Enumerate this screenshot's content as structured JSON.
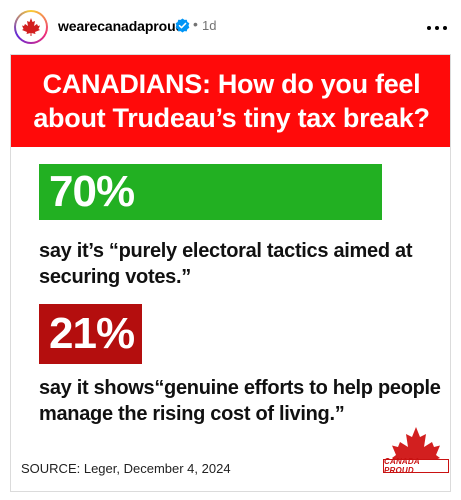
{
  "post": {
    "username": "wearecanadaproud",
    "separator": "•",
    "time": "1d",
    "avatar_icon": "canada-proud-logo",
    "verified_icon": "verified-badge-icon",
    "more_icon": "more-horizontal-icon"
  },
  "graphic": {
    "headline": "CANADIANS: How do you feel about Trudeau’s tiny tax break?",
    "stat1": {
      "value": "70%",
      "description": "say it’s “purely electoral tactics aimed at securing votes.”",
      "color": "#22b022"
    },
    "stat2": {
      "value": "21%",
      "description": "say it shows“genuine efforts to help people manage the rising cost of living.”",
      "color": "#b40e0e"
    },
    "source": "SOURCE: Leger, December 4, 2024",
    "brand_logo": "CANADA PROUD",
    "banner_color": "#ff0a0a"
  }
}
